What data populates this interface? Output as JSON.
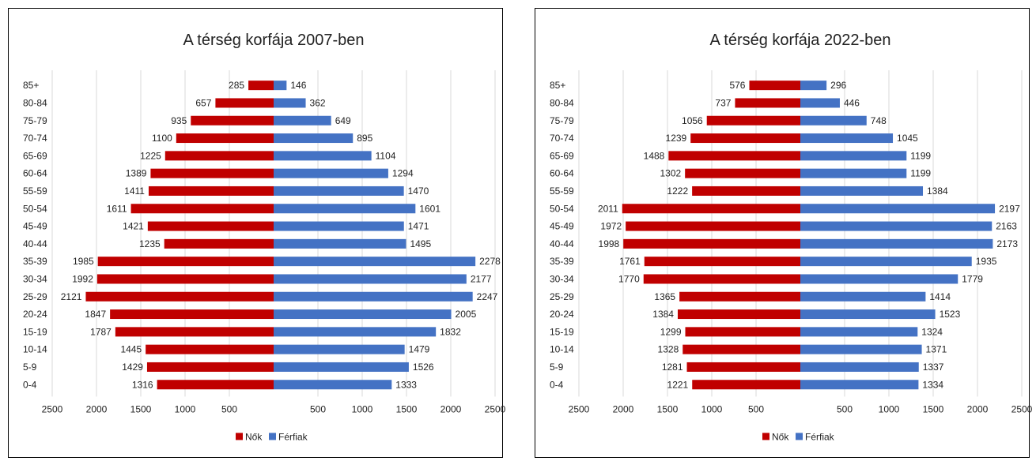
{
  "colors": {
    "women": "#c00000",
    "men": "#4472c4"
  },
  "chart_data": [
    {
      "type": "bar",
      "title": "A térség korfája 2007-ben",
      "categories": [
        "85+",
        "80-84",
        "75-79",
        "70-74",
        "65-69",
        "60-64",
        "55-59",
        "50-54",
        "45-49",
        "40-44",
        "35-39",
        "30-34",
        "25-29",
        "20-24",
        "15-19",
        "10-14",
        "5-9",
        "0-4"
      ],
      "series": [
        {
          "name": "Nők",
          "values": [
            285,
            657,
            935,
            1100,
            1225,
            1389,
            1411,
            1611,
            1421,
            1235,
            1985,
            1992,
            2121,
            1847,
            1787,
            1445,
            1429,
            1316
          ]
        },
        {
          "name": "Férfiak",
          "values": [
            146,
            362,
            649,
            895,
            1104,
            1294,
            1470,
            1601,
            1471,
            1495,
            2278,
            2177,
            2247,
            2005,
            1832,
            1479,
            1526,
            1333
          ]
        }
      ],
      "x_ticks": [
        "2500",
        "2000",
        "1500",
        "1000",
        "500",
        "",
        "500",
        "1000",
        "1500",
        "2000",
        "2500"
      ],
      "xlim": [
        -2500,
        2500
      ],
      "grid": true,
      "legend_position": "bottom"
    },
    {
      "type": "bar",
      "title": "A térség korfája 2022-ben",
      "categories": [
        "85+",
        "80-84",
        "75-79",
        "70-74",
        "65-69",
        "60-64",
        "55-59",
        "50-54",
        "45-49",
        "40-44",
        "35-39",
        "30-34",
        "25-29",
        "20-24",
        "15-19",
        "10-14",
        "5-9",
        "0-4"
      ],
      "series": [
        {
          "name": "Nők",
          "values": [
            576,
            737,
            1056,
            1239,
            1488,
            1302,
            1222,
            2011,
            1972,
            1998,
            1761,
            1770,
            1365,
            1384,
            1299,
            1328,
            1281,
            1221
          ]
        },
        {
          "name": "Férfiak",
          "values": [
            296,
            446,
            748,
            1045,
            1199,
            1199,
            1384,
            2197,
            2163,
            2173,
            1935,
            1779,
            1414,
            1523,
            1324,
            1371,
            1337,
            1334
          ]
        }
      ],
      "x_ticks": [
        "2500",
        "2000",
        "1500",
        "1000",
        "500",
        "",
        "500",
        "1000",
        "1500",
        "2000",
        "2500"
      ],
      "xlim": [
        -2500,
        2500
      ],
      "grid": true,
      "legend_position": "bottom"
    }
  ]
}
